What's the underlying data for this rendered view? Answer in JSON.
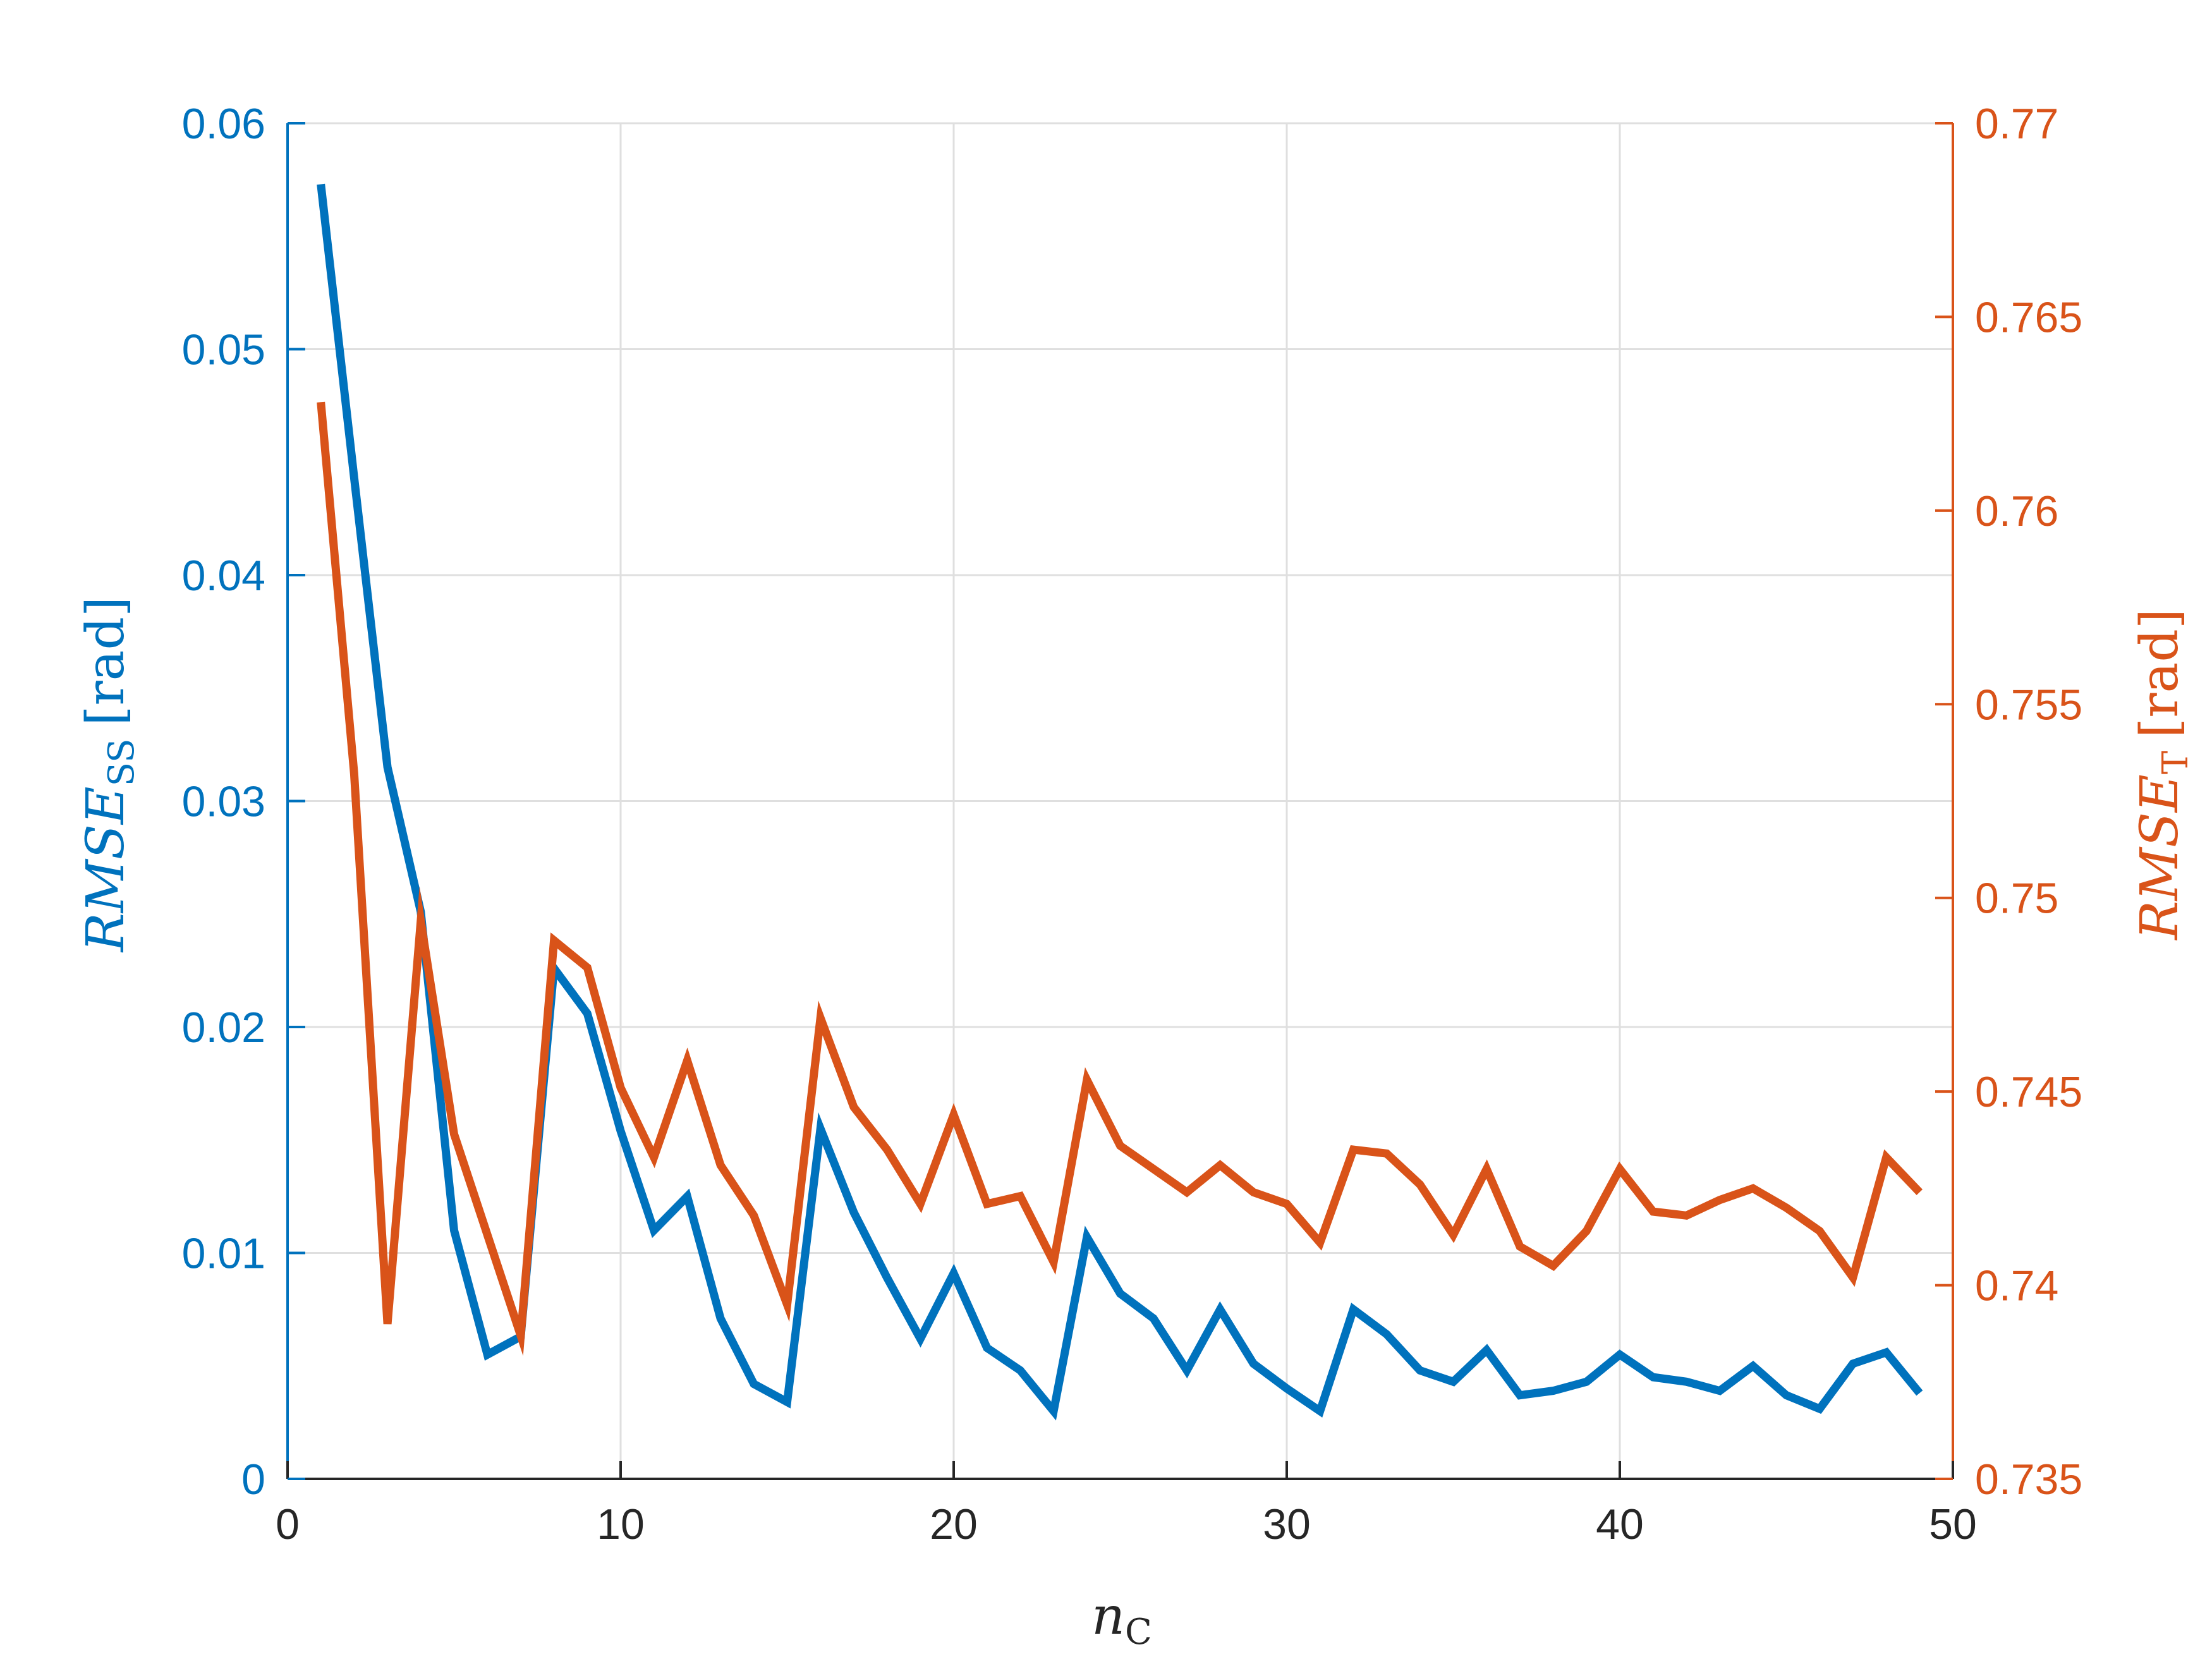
{
  "chart_data": {
    "type": "line",
    "title": "",
    "xlabel": {
      "main": "n",
      "subscript": "C"
    },
    "ylabel_left": {
      "main": "RMSE",
      "subscript": "SS",
      "unit": "[rad]"
    },
    "ylabel_right": {
      "main": "RMSE",
      "subscript": "T",
      "unit": "[rad]"
    },
    "xlim": [
      0,
      50
    ],
    "ylim_left": [
      0,
      0.06
    ],
    "ylim_right": [
      0.735,
      0.77
    ],
    "x_ticks": [
      "0",
      "10",
      "20",
      "30",
      "40",
      "50"
    ],
    "y_ticks_left": [
      "0",
      "0.01",
      "0.02",
      "0.03",
      "0.04",
      "0.05",
      "0.06"
    ],
    "y_ticks_right": [
      "0.735",
      "0.74",
      "0.745",
      "0.75",
      "0.755",
      "0.76",
      "0.765",
      "0.77"
    ],
    "grid": true,
    "legend": "none",
    "colors": {
      "left_series": "#0072BD",
      "right_series": "#D95319",
      "axis": "#262626",
      "grid": "#DFDFDF"
    },
    "series": [
      {
        "axis": "left",
        "x": [
          1,
          2,
          3,
          4,
          5,
          6,
          7,
          8,
          9,
          10,
          11,
          12,
          13,
          14,
          15,
          16,
          17,
          18,
          19,
          20,
          21,
          22,
          23,
          24,
          25,
          26,
          27,
          28,
          29,
          30,
          31,
          32,
          33,
          34,
          35,
          36,
          37,
          38,
          39,
          40,
          41,
          42,
          43,
          44,
          45,
          46,
          47,
          48,
          49
        ],
        "values": [
          0.0573,
          0.0443,
          0.0315,
          0.0251,
          0.011,
          0.0055,
          0.0063,
          0.0226,
          0.0206,
          0.0154,
          0.011,
          0.0125,
          0.0071,
          0.0042,
          0.0034,
          0.0155,
          0.0118,
          0.0089,
          0.0062,
          0.0091,
          0.0058,
          0.0048,
          0.003,
          0.0107,
          0.0082,
          0.0071,
          0.0048,
          0.0075,
          0.0051,
          0.004,
          0.003,
          0.0075,
          0.0064,
          0.0048,
          0.0043,
          0.0057,
          0.0037,
          0.0039,
          0.0043,
          0.0055,
          0.0045,
          0.0043,
          0.0039,
          0.005,
          0.0037,
          0.0031,
          0.0051,
          0.0056,
          0.0038
        ]
      },
      {
        "axis": "right",
        "x": [
          1,
          2,
          3,
          4,
          5,
          6,
          7,
          8,
          9,
          10,
          11,
          12,
          13,
          14,
          15,
          16,
          17,
          18,
          19,
          20,
          21,
          22,
          23,
          24,
          25,
          26,
          27,
          28,
          29,
          30,
          31,
          32,
          33,
          34,
          35,
          36,
          37,
          38,
          39,
          40,
          41,
          42,
          43,
          44,
          45,
          46,
          47,
          48,
          49
        ],
        "values": [
          0.7628,
          0.7532,
          0.739,
          0.7494,
          0.7439,
          0.7413,
          0.7387,
          0.7489,
          0.7482,
          0.7451,
          0.7433,
          0.7458,
          0.7431,
          0.7418,
          0.7395,
          0.7469,
          0.7446,
          0.7435,
          0.7421,
          0.7444,
          0.7421,
          0.7423,
          0.7406,
          0.7453,
          0.7436,
          0.743,
          0.7424,
          0.7431,
          0.7424,
          0.7421,
          0.7411,
          0.7435,
          0.7434,
          0.7426,
          0.7413,
          0.743,
          0.741,
          0.7405,
          0.7414,
          0.743,
          0.7419,
          0.7418,
          0.7422,
          0.7425,
          0.742,
          0.7414,
          0.7402,
          0.7433,
          0.7424
        ]
      }
    ]
  }
}
